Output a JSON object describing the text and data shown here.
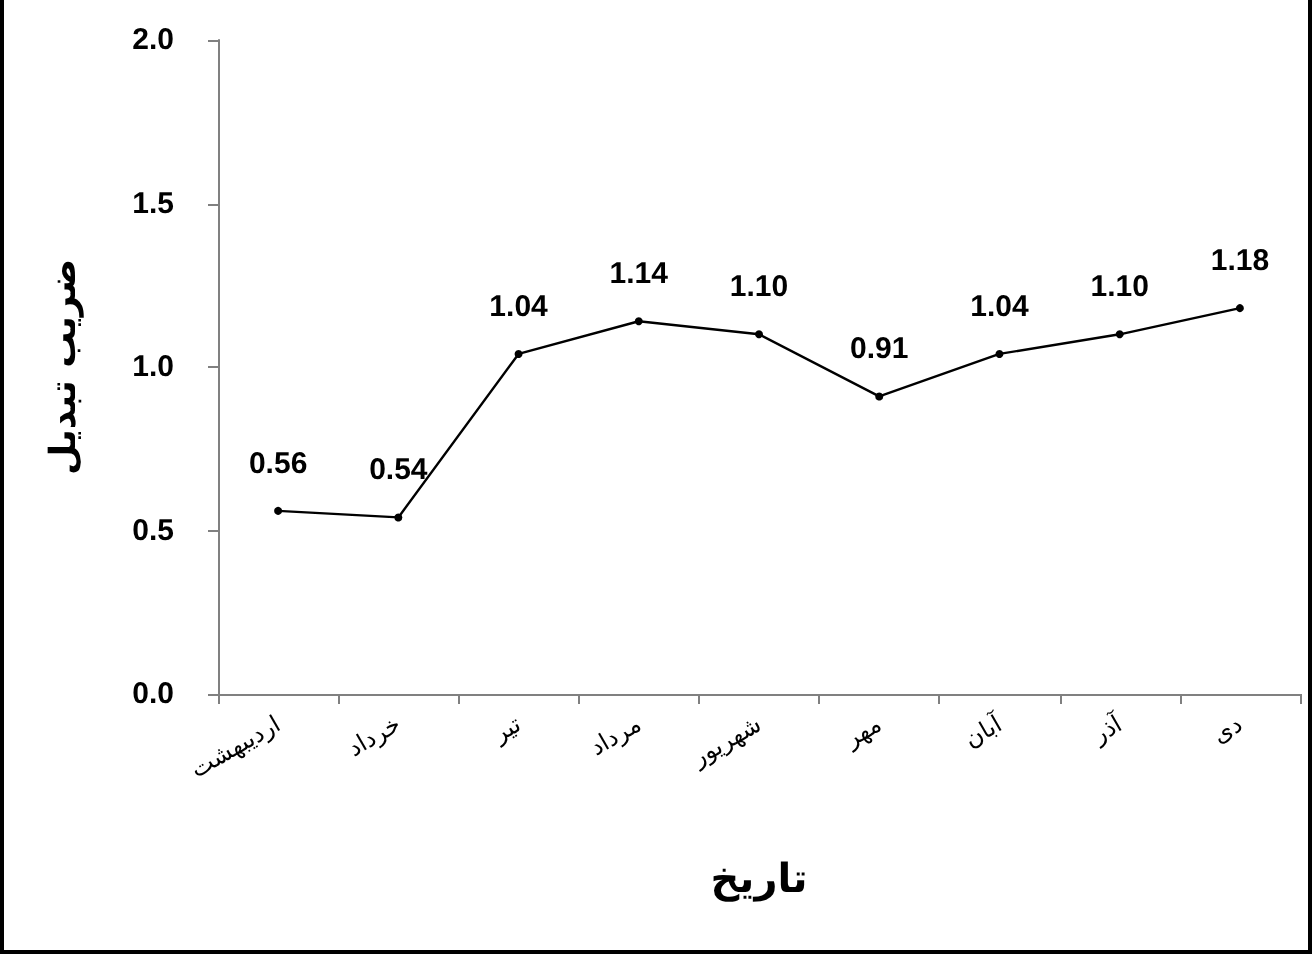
{
  "chart_data": {
    "type": "line",
    "xlabel": "تاریخ",
    "ylabel": "ضریب تبدیل",
    "categories": [
      "اردیبهشت",
      "خرداد",
      "تیر",
      "مرداد",
      "شهریور",
      "مهر",
      "آبان",
      "آذر",
      "دی"
    ],
    "series": [
      {
        "color": "#000000",
        "values": [
          0.56,
          0.54,
          1.04,
          1.14,
          1.1,
          0.91,
          1.04,
          1.1,
          1.18
        ],
        "value_labels": [
          "0.56",
          "0.54",
          "1.04",
          "1.14",
          "1.10",
          "0.91",
          "1.04",
          "1.10",
          "1.18"
        ]
      }
    ],
    "ylim": [
      0,
      2
    ],
    "yticks": [
      {
        "value": 0,
        "label": "0.0"
      },
      {
        "value": 0.5,
        "label": "0.5"
      },
      {
        "value": 1,
        "label": "1.0"
      },
      {
        "value": 1.5,
        "label": "1.5"
      },
      {
        "value": 2,
        "label": "2.0"
      }
    ],
    "grid": false,
    "legend": false,
    "marker": "circle",
    "line_style": "solid"
  }
}
